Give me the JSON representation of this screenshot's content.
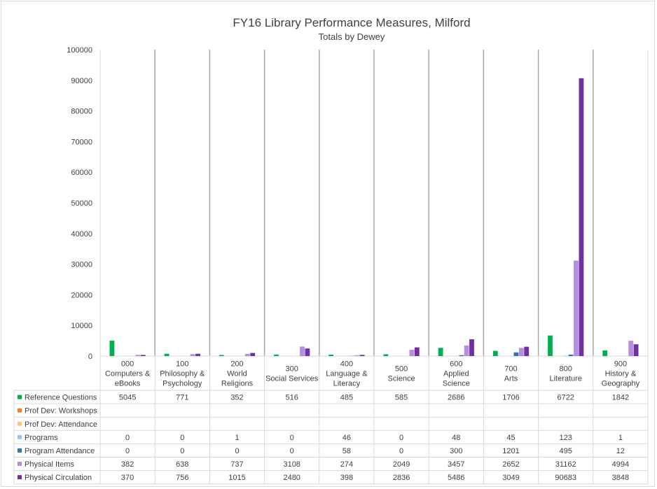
{
  "chart_data": {
    "type": "bar",
    "title": "FY16 Library Performance Measures, Milford",
    "subtitle": "Totals by Dewey",
    "ylim": [
      0,
      100000
    ],
    "yticks": [
      0,
      10000,
      20000,
      30000,
      40000,
      50000,
      60000,
      70000,
      80000,
      90000,
      100000
    ],
    "grid": false,
    "legend": "data table",
    "categories": [
      [
        "000",
        "Computers &",
        "eBooks"
      ],
      [
        "100",
        "Philosophy &",
        "Psychology"
      ],
      [
        "200",
        "World",
        "Religions"
      ],
      [
        "300",
        "Social Services"
      ],
      [
        "400",
        "Language &",
        "Literacy"
      ],
      [
        "500",
        "Science"
      ],
      [
        "600",
        "Applied",
        "Science"
      ],
      [
        "700",
        "Arts"
      ],
      [
        "800",
        "Literature"
      ],
      [
        "900",
        "History &",
        "Geography"
      ]
    ],
    "series": [
      {
        "name": "Reference Questions",
        "color": "#00b050",
        "values": [
          5045,
          771,
          352,
          516,
          485,
          585,
          2686,
          1706,
          6722,
          1842
        ]
      },
      {
        "name": "Prof Dev: Workshops",
        "color": "#ed7d31",
        "values": [
          null,
          null,
          null,
          null,
          null,
          null,
          null,
          null,
          null,
          null
        ]
      },
      {
        "name": "Prof Dev: Attendance",
        "color": "#ffc47a",
        "values": [
          null,
          null,
          null,
          null,
          null,
          null,
          null,
          null,
          null,
          null
        ]
      },
      {
        "name": "Programs",
        "color": "#9dc3e6",
        "values": [
          0,
          0,
          1,
          0,
          46,
          0,
          48,
          45,
          123,
          1
        ]
      },
      {
        "name": "Program Attendance",
        "color": "#2e75b6",
        "values": [
          0,
          0,
          0,
          0,
          58,
          0,
          300,
          1201,
          495,
          12
        ]
      },
      {
        "name": "Physical Items",
        "color": "#b48ee0",
        "values": [
          382,
          638,
          737,
          3108,
          274,
          2049,
          3457,
          2652,
          31162,
          4994
        ]
      },
      {
        "name": "Physical Circulation",
        "color": "#7030a0",
        "values": [
          370,
          756,
          1015,
          2480,
          398,
          2836,
          5486,
          3049,
          90683,
          3848
        ]
      }
    ]
  }
}
